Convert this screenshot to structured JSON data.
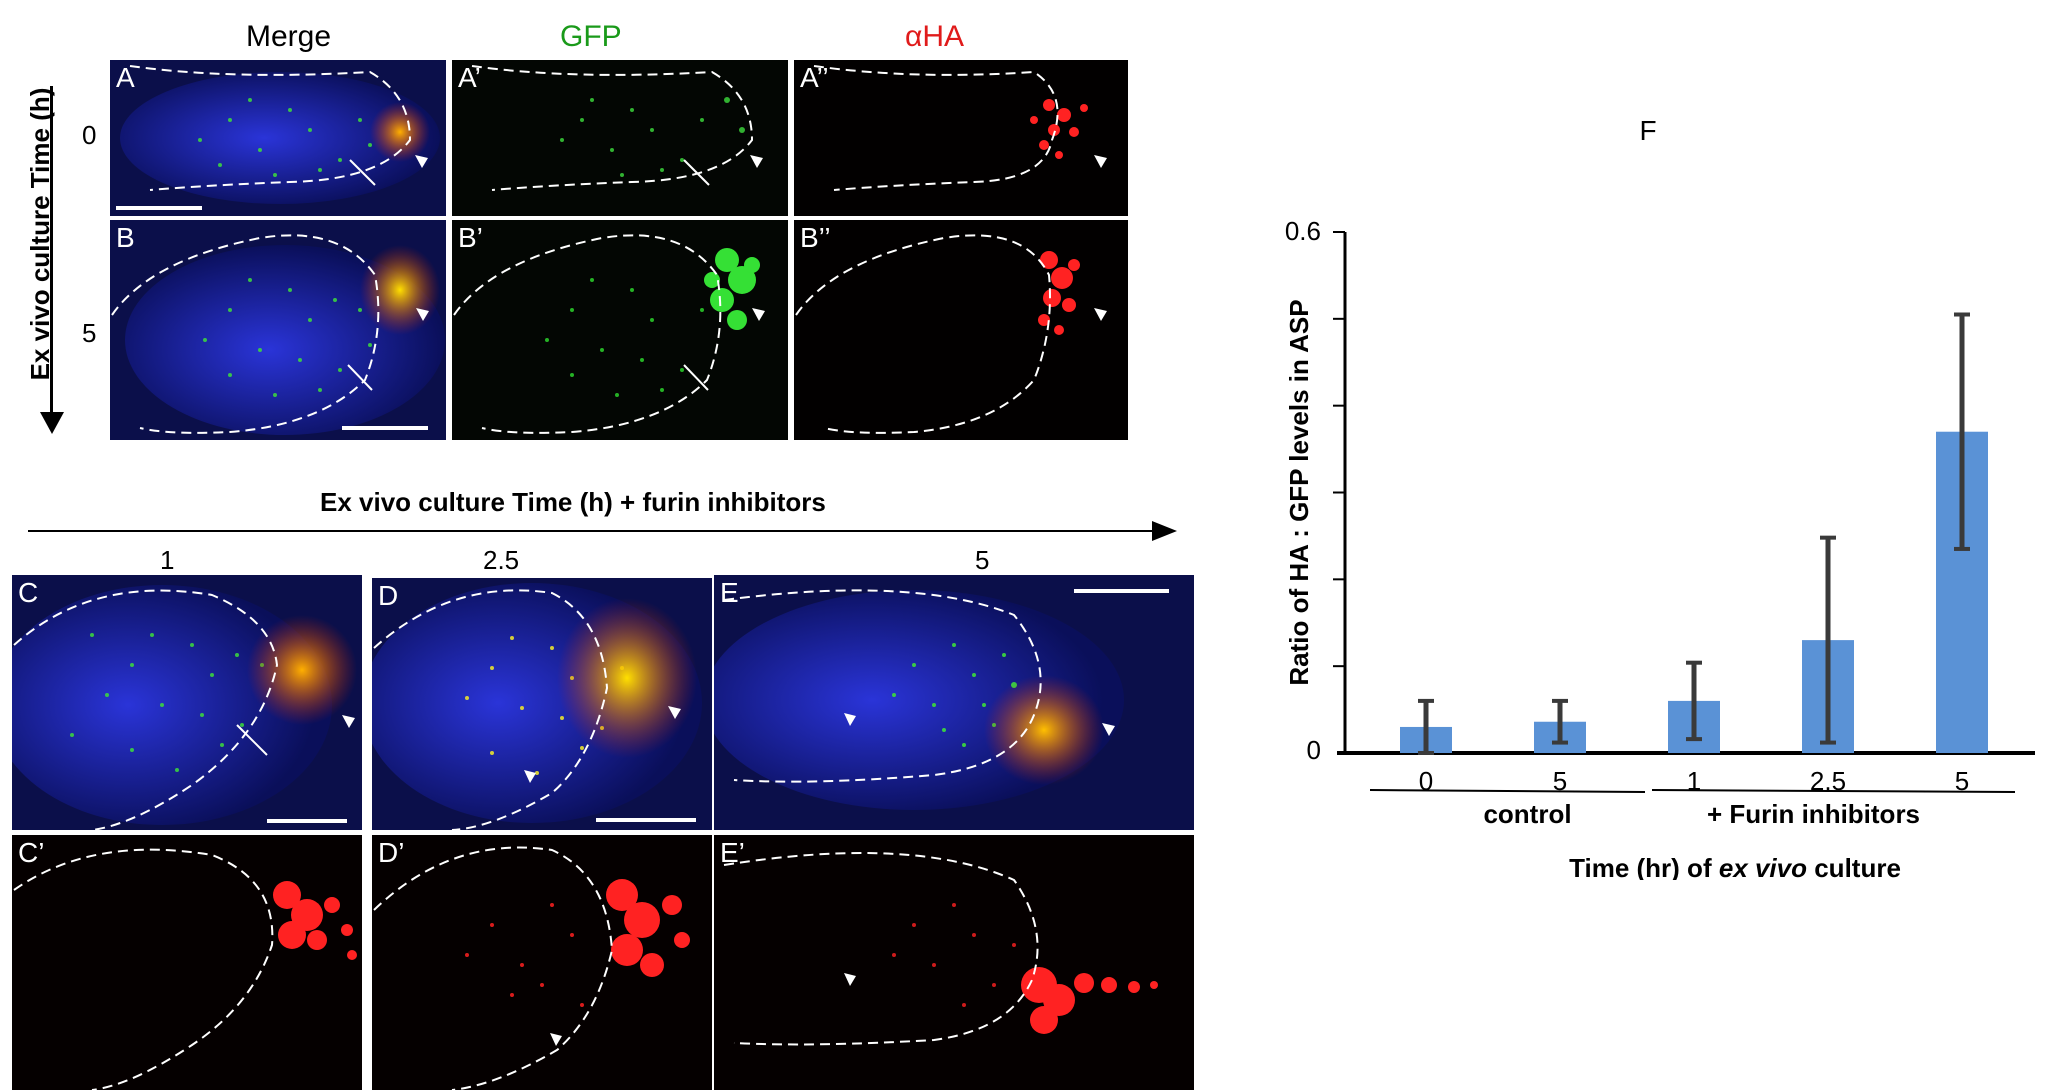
{
  "headers": {
    "merge": "Merge",
    "gfp": "GFP",
    "aha": "αHA"
  },
  "colors": {
    "gfp": "#1a9a1a",
    "aha": "#e01b1b",
    "bar": "#5a92d6",
    "err": "#3a3a3a"
  },
  "left_axis": {
    "title": "Ex vivo culture Time (h)",
    "t0": "0",
    "t5": "5"
  },
  "furin_axis": {
    "title": "Ex vivo culture Time (h) + furin inhibitors",
    "t1": "1",
    "t25": "2.5",
    "t5": "5"
  },
  "panels": {
    "A": "A",
    "A1": "A’",
    "A2": "A’’",
    "B": "B",
    "B1": "B’",
    "B2": "B’’",
    "C": "C",
    "D": "D",
    "E": "E",
    "C1": "C’",
    "D1": "D’",
    "E1": "E’"
  },
  "chart_data": {
    "type": "bar",
    "panel_label": "F",
    "ylabel": "Ratio of HA : GFP levels in ASP",
    "ylim": [
      0,
      0.6
    ],
    "y_tick_labels": [
      "0",
      "0.6"
    ],
    "categories": [
      "0",
      "5",
      "1",
      "2.5",
      "5"
    ],
    "values": [
      0.03,
      0.036,
      0.06,
      0.13,
      0.37
    ],
    "errors": [
      0.03,
      0.024,
      0.044,
      0.118,
      0.135
    ],
    "groups": [
      {
        "label": "control",
        "categories": [
          "0",
          "5"
        ]
      },
      {
        "label": "+ Furin inhibitors",
        "categories": [
          "1",
          "2.5",
          "5"
        ]
      }
    ],
    "xlabel_prefix": "Time (hr) of ",
    "xlabel_italic": "ex vivo",
    "xlabel_suffix": " culture"
  }
}
